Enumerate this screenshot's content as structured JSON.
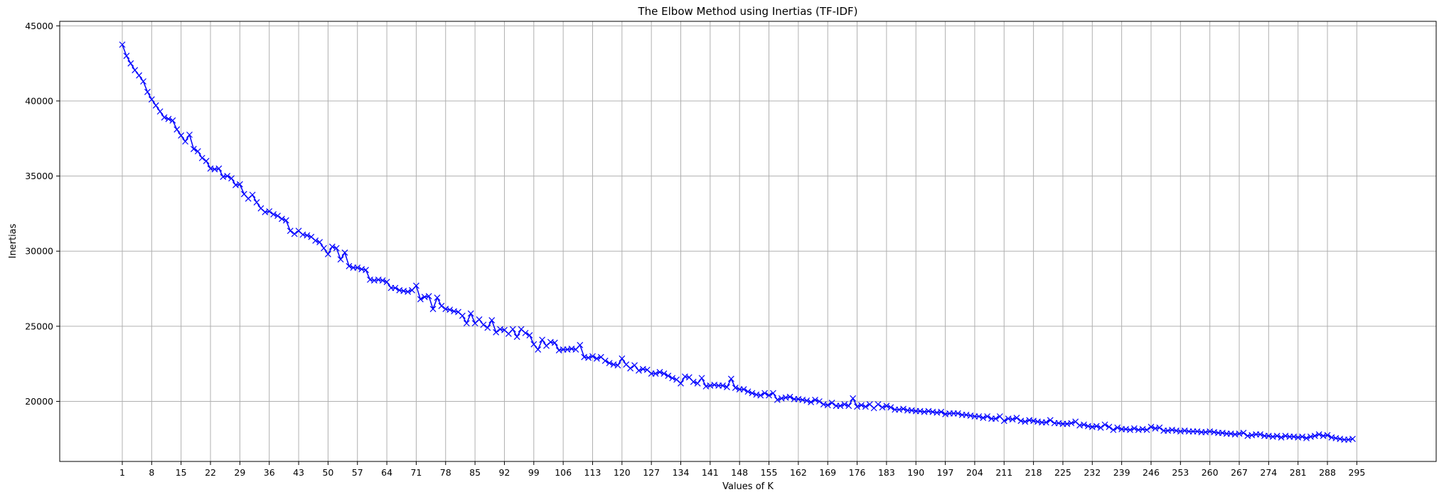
{
  "chart_data": {
    "type": "line",
    "title": "The Elbow Method using Inertias (TF-IDF)",
    "xlabel": "Values of K",
    "ylabel": "Inertias",
    "xlim": [
      -13.9,
      313.9
    ],
    "ylim": [
      16000,
      45300
    ],
    "x_ticks": [
      1,
      8,
      15,
      22,
      29,
      36,
      43,
      50,
      57,
      64,
      71,
      78,
      85,
      92,
      99,
      106,
      113,
      120,
      127,
      134,
      141,
      148,
      155,
      162,
      169,
      176,
      183,
      190,
      197,
      204,
      211,
      218,
      225,
      232,
      239,
      246,
      253,
      260,
      267,
      274,
      281,
      288,
      295
    ],
    "y_ticks": [
      20000,
      25000,
      30000,
      35000,
      40000,
      45000
    ],
    "grid": true,
    "series": [
      {
        "color": "#0000ff",
        "marker": "x",
        "x_start": 1,
        "x_step": 1,
        "values": [
          43750,
          43000,
          42500,
          42050,
          41700,
          41300,
          40600,
          40100,
          39700,
          39300,
          38900,
          38800,
          38700,
          38100,
          37700,
          37300,
          37750,
          36800,
          36650,
          36200,
          36000,
          35500,
          35450,
          35500,
          34950,
          35000,
          34850,
          34400,
          34450,
          33800,
          33500,
          33750,
          33250,
          32850,
          32600,
          32650,
          32450,
          32350,
          32150,
          32050,
          31350,
          31150,
          31350,
          31100,
          31050,
          30950,
          30700,
          30600,
          30200,
          29800,
          30300,
          30200,
          29450,
          29900,
          29000,
          28900,
          28900,
          28800,
          28750,
          28100,
          28050,
          28100,
          28050,
          27950,
          27550,
          27550,
          27400,
          27350,
          27300,
          27400,
          27700,
          26800,
          26950,
          27000,
          26150,
          26900,
          26350,
          26150,
          26100,
          26000,
          25950,
          25700,
          25200,
          25850,
          25200,
          25450,
          25100,
          24900,
          25400,
          24600,
          24800,
          24750,
          24500,
          24800,
          24300,
          24800,
          24550,
          24400,
          23800,
          23450,
          24100,
          23700,
          23950,
          23900,
          23400,
          23450,
          23450,
          23500,
          23450,
          23750,
          22950,
          22900,
          23000,
          22850,
          22950,
          22700,
          22550,
          22450,
          22400,
          22850,
          22450,
          22200,
          22400,
          22050,
          22150,
          22100,
          21850,
          21850,
          21950,
          21850,
          21700,
          21550,
          21450,
          21200,
          21650,
          21600,
          21300,
          21200,
          21550,
          21000,
          21050,
          21100,
          21050,
          21050,
          20950,
          21500,
          20900,
          20800,
          20800,
          20650,
          20550,
          20450,
          20400,
          20550,
          20400,
          20550,
          20100,
          20200,
          20250,
          20300,
          20150,
          20150,
          20100,
          20050,
          19950,
          20100,
          20000,
          19800,
          19750,
          19900,
          19700,
          19700,
          19800,
          19700,
          20200,
          19650,
          19750,
          19650,
          19800,
          19550,
          19800,
          19600,
          19700,
          19600,
          19450,
          19450,
          19500,
          19400,
          19400,
          19350,
          19350,
          19300,
          19350,
          19300,
          19250,
          19300,
          19150,
          19200,
          19200,
          19200,
          19100,
          19100,
          19050,
          19000,
          19000,
          18900,
          19000,
          18850,
          18850,
          19000,
          18700,
          18850,
          18800,
          18900,
          18700,
          18650,
          18750,
          18700,
          18650,
          18600,
          18600,
          18750,
          18550,
          18550,
          18500,
          18500,
          18550,
          18650,
          18400,
          18450,
          18350,
          18300,
          18350,
          18250,
          18450,
          18300,
          18100,
          18250,
          18150,
          18150,
          18100,
          18200,
          18100,
          18150,
          18100,
          18300,
          18200,
          18250,
          18050,
          18050,
          18100,
          18050,
          18000,
          18050,
          18000,
          18000,
          18000,
          17950,
          17950,
          18000,
          17950,
          17900,
          17900,
          17850,
          17850,
          17800,
          17850,
          17900,
          17700,
          17750,
          17800,
          17800,
          17700,
          17700,
          17650,
          17700,
          17600,
          17700,
          17650,
          17650,
          17600,
          17650,
          17550,
          17650,
          17700,
          17800,
          17700,
          17750,
          17600,
          17550,
          17500,
          17450,
          17450,
          17500
        ]
      }
    ]
  }
}
